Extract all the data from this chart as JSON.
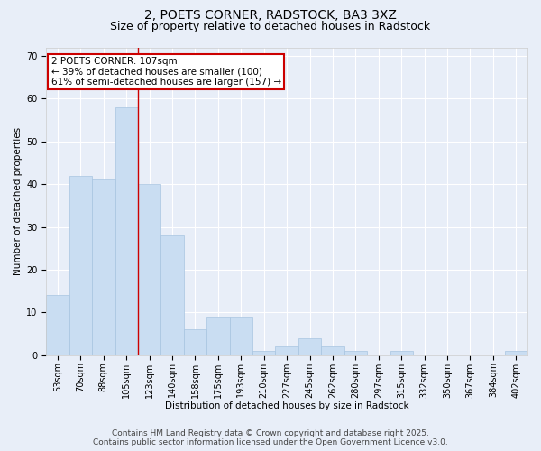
{
  "title1": "2, POETS CORNER, RADSTOCK, BA3 3XZ",
  "title2": "Size of property relative to detached houses in Radstock",
  "xlabel": "Distribution of detached houses by size in Radstock",
  "ylabel": "Number of detached properties",
  "categories": [
    "53sqm",
    "70sqm",
    "88sqm",
    "105sqm",
    "123sqm",
    "140sqm",
    "158sqm",
    "175sqm",
    "193sqm",
    "210sqm",
    "227sqm",
    "245sqm",
    "262sqm",
    "280sqm",
    "297sqm",
    "315sqm",
    "332sqm",
    "350sqm",
    "367sqm",
    "384sqm",
    "402sqm"
  ],
  "values": [
    14,
    42,
    41,
    58,
    40,
    28,
    6,
    9,
    9,
    1,
    2,
    4,
    2,
    1,
    0,
    1,
    0,
    0,
    0,
    0,
    1
  ],
  "bar_color": "#c9ddf2",
  "bar_edge_color": "#a8c4e0",
  "red_line_index": 3.5,
  "annotation_title": "2 POETS CORNER: 107sqm",
  "annotation_line1": "← 39% of detached houses are smaller (100)",
  "annotation_line2": "61% of semi-detached houses are larger (157) →",
  "annotation_box_color": "#ffffff",
  "annotation_box_edge": "#cc0000",
  "ylim": [
    0,
    72
  ],
  "yticks": [
    0,
    10,
    20,
    30,
    40,
    50,
    60,
    70
  ],
  "background_color": "#e8eef8",
  "plot_background": "#e8eef8",
  "footer1": "Contains HM Land Registry data © Crown copyright and database right 2025.",
  "footer2": "Contains public sector information licensed under the Open Government Licence v3.0.",
  "title_fontsize": 10,
  "subtitle_fontsize": 9,
  "axis_label_fontsize": 7.5,
  "tick_fontsize": 7,
  "footer_fontsize": 6.5,
  "annotation_fontsize": 7.5
}
